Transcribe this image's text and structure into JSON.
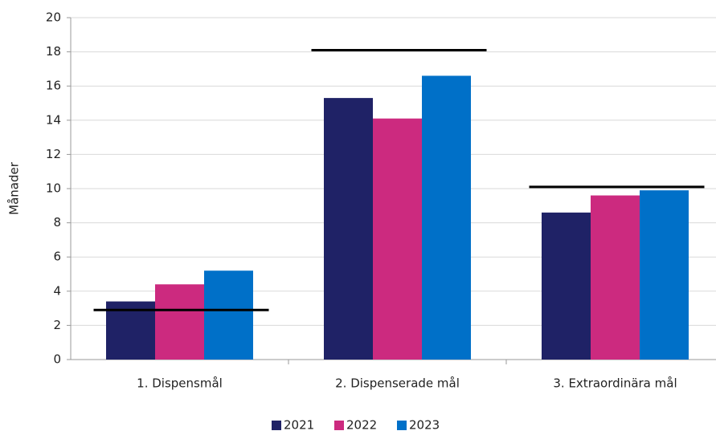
{
  "chart_data": {
    "type": "bar",
    "y_label": "Månader",
    "categories": [
      "1. Dispensmål",
      "2. Dispenserade mål",
      "3. Extraordinära mål"
    ],
    "series": [
      {
        "name": "2021",
        "color": "#1f2266",
        "values": [
          3.4,
          15.3,
          8.6
        ]
      },
      {
        "name": "2022",
        "color": "#cc2a7f",
        "values": [
          4.4,
          14.1,
          9.6
        ]
      },
      {
        "name": "2023",
        "color": "#0070c8",
        "values": [
          5.2,
          16.6,
          9.9
        ]
      }
    ],
    "targets": {
      "color": "#000000",
      "values": [
        2.9,
        18.1,
        10.1
      ]
    },
    "ylim": [
      0,
      20
    ],
    "yticks": [
      0,
      2,
      4,
      6,
      8,
      10,
      12,
      14,
      16,
      18,
      20
    ],
    "grid": true,
    "legend": "bottom"
  }
}
